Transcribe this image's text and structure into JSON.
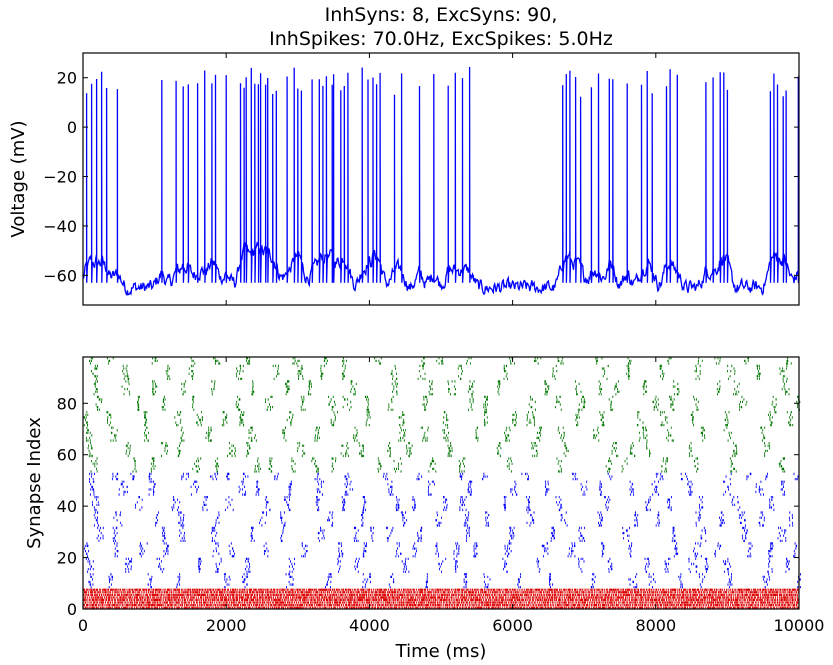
{
  "chart_data": [
    {
      "type": "line",
      "title_line1": "InhSyns: 8, ExcSyns: 90,",
      "title_line2": "InhSpikes: 70.0Hz, ExcSpikes: 5.0Hz",
      "xlabel": "",
      "ylabel": "Voltage (mV)",
      "xlim": [
        0,
        10000
      ],
      "ylim": [
        -72,
        30
      ],
      "yticks": [
        -60,
        -40,
        -20,
        0,
        20
      ],
      "yticklabels": [
        "−60",
        "−40",
        "−20",
        "0",
        "20"
      ],
      "xticks": [
        0,
        2000,
        4000,
        6000,
        8000,
        10000
      ],
      "line_color": "#0000ff",
      "baseline_mv": -65,
      "spike_peaks_mv": [
        20,
        22,
        24,
        25
      ],
      "spike_times_ms": [
        50,
        120,
        190,
        260,
        330,
        480,
        1100,
        1300,
        1400,
        1470,
        1600,
        1700,
        1800,
        1850,
        2000,
        2200,
        2250,
        2280,
        2350,
        2400,
        2450,
        2480,
        2550,
        2580,
        2650,
        2700,
        2850,
        2950,
        3000,
        3050,
        3200,
        3300,
        3350,
        3400,
        3480,
        3500,
        3600,
        3650,
        3700,
        3900,
        3980,
        4050,
        4100,
        4150,
        4350,
        4450,
        4700,
        4900,
        5100,
        5200,
        5300,
        5400,
        6700,
        6750,
        6800,
        6880,
        6950,
        7100,
        7200,
        7350,
        7400,
        7600,
        7800,
        7880,
        7950,
        8150,
        8200,
        8300,
        8700,
        8800,
        8900,
        8950,
        9000,
        9600,
        9650,
        9700,
        9780,
        9820,
        9990
      ]
    },
    {
      "type": "scatter",
      "xlabel": "Time (ms)",
      "ylabel": "Synapse Index",
      "xlim": [
        0,
        10000
      ],
      "ylim": [
        0,
        98
      ],
      "xticks": [
        0,
        2000,
        4000,
        6000,
        8000,
        10000
      ],
      "xticklabels": [
        "0",
        "2000",
        "4000",
        "6000",
        "8000",
        "10000"
      ],
      "yticks": [
        0,
        20,
        40,
        60,
        80
      ],
      "yticklabels": [
        "0",
        "20",
        "40",
        "60",
        "80"
      ],
      "series": [
        {
          "index_range": [
            0,
            7
          ],
          "rate_hz": 70.0,
          "color": "#dd0000"
        },
        {
          "index_range": [
            8,
            52
          ],
          "rate_hz": 5.0,
          "color": "#0000ff"
        },
        {
          "index_range": [
            53,
            97
          ],
          "rate_hz": 5.0,
          "color": "#007700"
        }
      ]
    }
  ]
}
